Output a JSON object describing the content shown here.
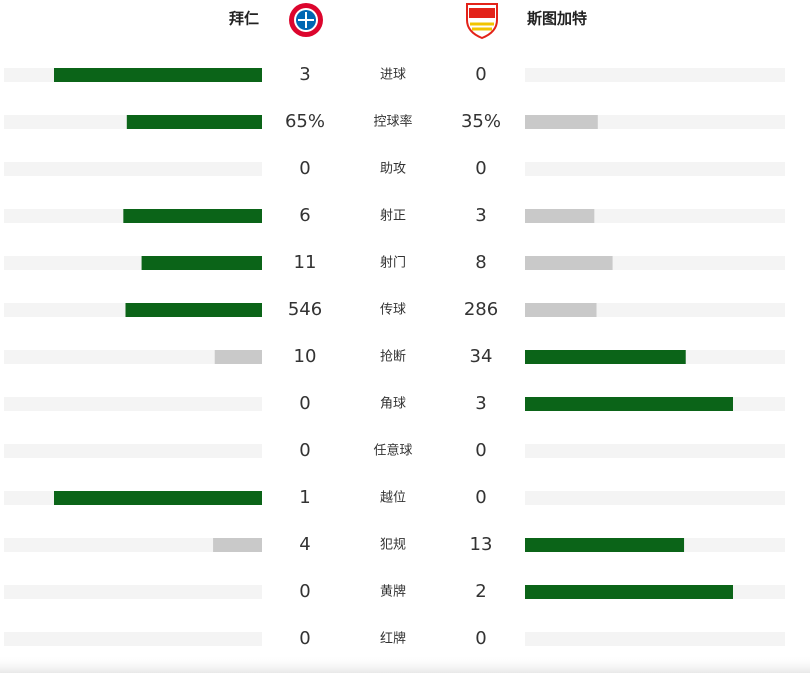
{
  "home_team": "拜仁",
  "away_team": "斯图加特",
  "stats": [
    {
      "label": "进球",
      "home": 3,
      "away": 0
    },
    {
      "label": "控球率",
      "home": 65,
      "away": 35,
      "home_label": "65%",
      "away_label": "35%"
    },
    {
      "label": "助攻",
      "home": 0,
      "away": 0
    },
    {
      "label": "射正",
      "home": 6,
      "away": 3
    },
    {
      "label": "射门",
      "home": 11,
      "away": 8
    },
    {
      "label": "传球",
      "home": 546,
      "away": 286
    },
    {
      "label": "抢断",
      "home": 10,
      "away": 34
    },
    {
      "label": "角球",
      "home": 0,
      "away": 3
    },
    {
      "label": "任意球",
      "home": 0,
      "away": 0
    },
    {
      "label": "越位",
      "home": 1,
      "away": 0
    },
    {
      "label": "犯规",
      "home": 4,
      "away": 13
    },
    {
      "label": "黄牌",
      "home": 0,
      "away": 2
    },
    {
      "label": "红牌",
      "home": 0,
      "away": 0
    }
  ]
}
